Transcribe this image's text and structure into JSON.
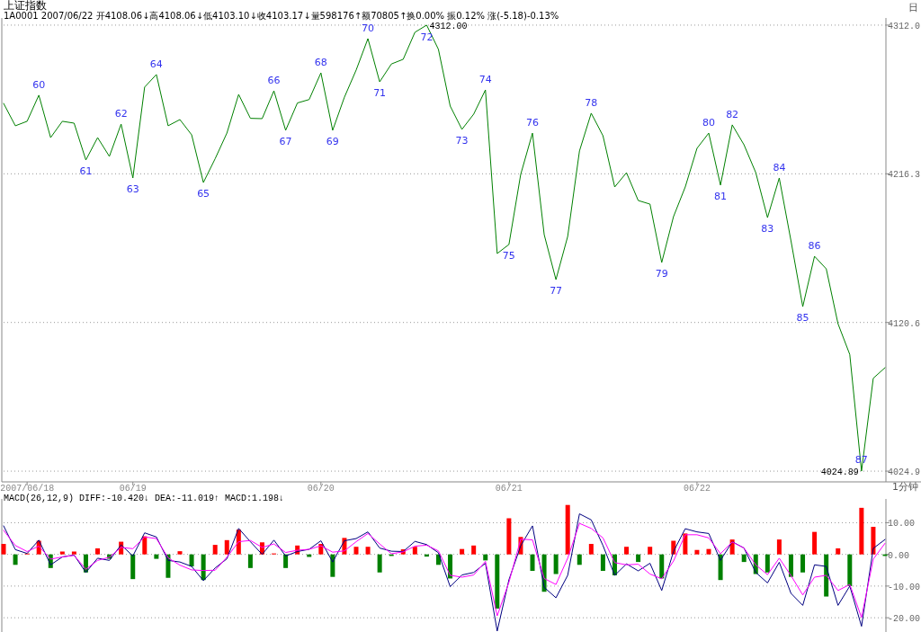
{
  "chart_data": [
    {
      "type": "line",
      "title": "上证指数",
      "subtitle": "1A0001 2007/06/22 开4108.06↓高4108.06↓低4103.10↓收4103.17↓量598176↑额70805↑换0.00% 振0.12% 涨(-5.18)-0.13%",
      "categories": [
        null,
        null,
        null,
        null,
        null,
        null,
        null,
        null,
        null,
        null,
        null,
        null,
        null,
        null,
        null,
        null,
        null,
        null,
        null,
        null,
        null,
        null,
        null,
        null,
        null,
        null,
        null,
        null,
        null,
        null,
        null,
        null,
        null,
        null,
        null,
        null,
        null,
        null,
        null,
        null,
        null,
        null,
        null,
        null,
        null,
        null,
        null,
        null,
        null,
        null,
        null,
        null,
        null,
        null,
        null,
        null,
        null,
        null,
        null,
        null,
        null,
        null,
        null,
        null,
        null,
        null,
        null,
        null,
        null,
        null,
        null,
        null,
        null,
        null,
        null,
        null
      ],
      "values": [
        4261.6,
        4247.2,
        4250.1,
        4266.9,
        4239.6,
        4250.1,
        4248.9,
        4225.2,
        4239.6,
        4227.5,
        4248.3,
        4213.6,
        4272.1,
        4280.2,
        4247.2,
        4251.2,
        4241.4,
        4210.7,
        4226.0,
        4242.5,
        4267.4,
        4252.0,
        4251.8,
        4269.7,
        4244.3,
        4261.9,
        4264.1,
        4281.3,
        4244.3,
        4265.6,
        4283.1,
        4303.3,
        4275.5,
        4287.0,
        4290.0,
        4307.4,
        4312.0,
        4296.4,
        4259.9,
        4244.9,
        4254.7,
        4270.3,
        4165.0,
        4170.8,
        4215.9,
        4242.5,
        4177.1,
        4148.2,
        4176.0,
        4231.0,
        4255.3,
        4240.8,
        4207.8,
        4217.0,
        4199.1,
        4196.8,
        4159.2,
        4188.7,
        4207.8,
        4232.7,
        4242.5,
        4209.0,
        4247.8,
        4235.0,
        4217.1,
        4188.1,
        4213.6,
        4173.1,
        4130.8,
        4163.2,
        4155.1,
        4119.8,
        4100.0,
        4024.9,
        4084.7,
        4091.5
      ],
      "color": "#008000",
      "ylim": [
        4018,
        4316.6
      ],
      "yticks": [
        {
          "value": 4312,
          "label": "4312.0"
        },
        {
          "value": 4216.3,
          "label": "4216.3"
        },
        {
          "value": 4120.6,
          "label": "4120.6"
        },
        {
          "value": 4024.9,
          "label": "4024.9"
        }
      ],
      "grid": "y",
      "annotations": [
        "日",
        {
          "text": "60",
          "y": 4266.9
        },
        {
          "text": "61",
          "y": 4225.2
        },
        {
          "text": "62",
          "y": 4248.3
        },
        {
          "text": "63",
          "y": 4213.6
        },
        {
          "text": "64",
          "y": 4280.2
        },
        {
          "text": "65",
          "y": 4210.7
        },
        {
          "text": "66",
          "y": 4269.7
        },
        {
          "text": "67",
          "y": 4244.3
        },
        {
          "text": "68",
          "y": 4281.3
        },
        {
          "text": "69",
          "y": 4244.3
        },
        {
          "text": "70",
          "y": 4303.3
        },
        {
          "text": "71",
          "y": 4275.5
        },
        {
          "text": "72",
          "y": 4312.0
        },
        {
          "text": "73",
          "y": 4244.9
        },
        {
          "text": "74",
          "y": 4270.3
        },
        {
          "text": "75",
          "y": 4170.8
        },
        {
          "text": "76",
          "y": 4242.5
        },
        {
          "text": "77",
          "y": 4148.2
        },
        {
          "text": "78",
          "y": 4255.3
        },
        {
          "text": "79",
          "y": 4159.2
        },
        {
          "text": "80",
          "y": 4242.5
        },
        {
          "text": "81",
          "y": 4209.0
        },
        {
          "text": "82",
          "y": 4247.8
        },
        {
          "text": "83",
          "y": 4188.1
        },
        {
          "text": "84",
          "y": 4213.6
        },
        {
          "text": "85",
          "y": 4130.8
        },
        {
          "text": "86",
          "y": 4163.2
        },
        {
          "text": "87",
          "y": 4024.9
        },
        "4312.00",
        "4024.89"
      ]
    },
    {
      "type": "line",
      "title": "MACD(26,12,9) DIFF:-10.420↓ DEA:-11.019↑ MACD:1.198↓",
      "categories": [
        null,
        null,
        "2007/06/18",
        null,
        null,
        null,
        null,
        null,
        null,
        null,
        null,
        "06/19",
        null,
        null,
        null,
        null,
        null,
        null,
        null,
        null,
        null,
        null,
        null,
        null,
        null,
        null,
        null,
        "06/20",
        null,
        null,
        null,
        null,
        null,
        null,
        null,
        null,
        null,
        null,
        null,
        null,
        null,
        null,
        null,
        "06/21",
        null,
        null,
        null,
        null,
        null,
        null,
        null,
        null,
        null,
        null,
        null,
        null,
        null,
        null,
        null,
        "06/22",
        null,
        null,
        null,
        null,
        null,
        null,
        null,
        null,
        null,
        null,
        null,
        null,
        null,
        null,
        null,
        null
      ],
      "ylim": [
        -24.5,
        17.5
      ],
      "yticks": [
        {
          "value": 10,
          "label": "10.00"
        },
        {
          "value": 0,
          "label": "0.00"
        },
        {
          "value": -10,
          "label": "-10.00"
        },
        {
          "value": -20,
          "label": "-20.00"
        }
      ],
      "grid": "y",
      "annotations": [
        "1分钟"
      ],
      "series": [
        {
          "type": "bar",
          "values": [
            3.3,
            -3.3,
            0.3,
            4.3,
            -4.3,
            0.9,
            0.9,
            -5.7,
            1.9,
            -1.4,
            4.0,
            -7.8,
            5.7,
            -1.4,
            -7.4,
            1.0,
            -3.8,
            -8.1,
            3.0,
            4.5,
            7.8,
            -4.3,
            3.8,
            0.3,
            -4.3,
            2.8,
            -0.8,
            3.3,
            -7.1,
            5.2,
            2.4,
            2.4,
            -5.7,
            -0.5,
            1.6,
            2.4,
            -0.7,
            -3.3,
            -7.6,
            1.7,
            2.8,
            -1.9,
            -17.1,
            11.4,
            5.5,
            -5.2,
            -11.8,
            -6.2,
            15.6,
            -3.3,
            3.3,
            -5.2,
            -6.6,
            2.4,
            -2.4,
            2.4,
            -7.6,
            4.3,
            6.6,
            1.4,
            1.7,
            -8.1,
            4.7,
            -2.4,
            -6.2,
            -5.7,
            4.7,
            -7.1,
            -5.7,
            7.1,
            -13.3,
            1.9,
            -10.0,
            14.7,
            8.7,
            -0.5
          ],
          "colors": [
            "#ff0000",
            "#008000",
            "#ff0000",
            "#ff0000",
            "#008000",
            "#ff0000",
            "#ff0000",
            "#008000",
            "#ff0000",
            "#008000",
            "#ff0000",
            "#008000",
            "#ff0000",
            "#008000",
            "#008000",
            "#ff0000",
            "#008000",
            "#008000",
            "#ff0000",
            "#ff0000",
            "#ff0000",
            "#008000",
            "#ff0000",
            "#ff0000",
            "#008000",
            "#ff0000",
            "#008000",
            "#ff0000",
            "#008000",
            "#ff0000",
            "#ff0000",
            "#ff0000",
            "#008000",
            "#008000",
            "#ff0000",
            "#ff0000",
            "#008000",
            "#008000",
            "#008000",
            "#ff0000",
            "#ff0000",
            "#008000",
            "#008000",
            "#ff0000",
            "#ff0000",
            "#008000",
            "#008000",
            "#008000",
            "#ff0000",
            "#008000",
            "#ff0000",
            "#008000",
            "#008000",
            "#ff0000",
            "#008000",
            "#ff0000",
            "#008000",
            "#ff0000",
            "#ff0000",
            "#ff0000",
            "#ff0000",
            "#008000",
            "#ff0000",
            "#008000",
            "#008000",
            "#008000",
            "#ff0000",
            "#008000",
            "#008000",
            "#ff0000",
            "#008000",
            "#ff0000",
            "#008000",
            "#ff0000",
            "#ff0000",
            "#008000"
          ]
        },
        {
          "color": "#000080",
          "values": [
            9.0,
            1.5,
            0.3,
            4.5,
            -3.3,
            -0.8,
            -0.2,
            -5.7,
            -1.2,
            -1.9,
            3.0,
            -0.5,
            6.8,
            5.5,
            -1.9,
            -2.4,
            -3.8,
            -8.3,
            -4.3,
            -1.4,
            8.2,
            4.0,
            0.0,
            4.5,
            -0.5,
            0.9,
            1.6,
            4.3,
            -2.4,
            4.3,
            5.0,
            7.1,
            2.0,
            1.0,
            0.9,
            4.1,
            3.1,
            0.5,
            -10.2,
            -6.5,
            -5.7,
            -2.8,
            -24.2,
            -8.0,
            2.7,
            9.0,
            -10.4,
            -13.7,
            -6.6,
            12.8,
            10.9,
            2.8,
            -6.6,
            -3.0,
            -5.2,
            -2.8,
            -11.4,
            0.9,
            8.1,
            7.1,
            6.6,
            -1.9,
            4.0,
            2.0,
            -5.7,
            -9.0,
            -2.5,
            -12.3,
            -16.1,
            -3.3,
            -3.8,
            -16.1,
            -10.0,
            -22.7,
            1.9,
            4.7
          ]
        },
        {
          "color": "#ff00ff",
          "values": [
            7.6,
            2.8,
            0.9,
            2.6,
            -1.5,
            -0.8,
            -0.3,
            -4.7,
            -1.9,
            -0.9,
            2.2,
            1.8,
            5.5,
            5.0,
            -1.1,
            -3.4,
            -4.9,
            -5.1,
            -5.0,
            -0.9,
            4.0,
            4.4,
            2.2,
            3.3,
            0.6,
            1.3,
            1.6,
            2.7,
            0.7,
            1.1,
            4.0,
            6.6,
            3.3,
            0.2,
            0.8,
            2.6,
            2.9,
            1.1,
            -6.6,
            -7.2,
            -6.5,
            -2.2,
            -19.4,
            -8.8,
            4.8,
            4.6,
            -7.6,
            -9.5,
            -1.2,
            9.8,
            8.2,
            5.2,
            -2.6,
            -3.3,
            -3.1,
            -6.2,
            -7.7,
            -2.1,
            6.2,
            6.2,
            5.2,
            0.2,
            3.9,
            2.0,
            -3.3,
            -6.4,
            -1.2,
            -6.7,
            -12.8,
            -7.2,
            -6.6,
            -11.4,
            -9.5,
            -19.9,
            -1.5,
            3.5
          ]
        }
      ]
    }
  ]
}
